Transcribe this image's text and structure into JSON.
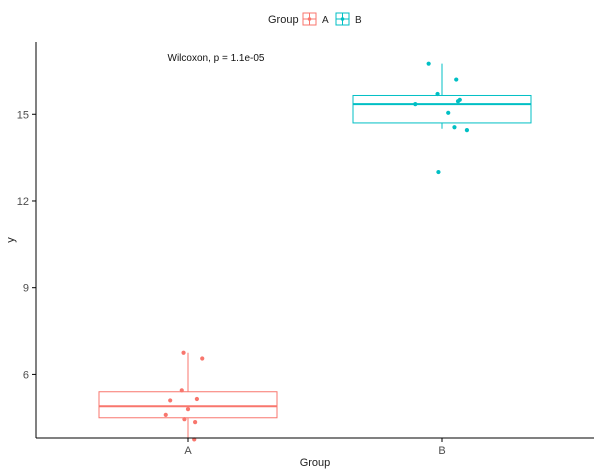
{
  "chart_data": {
    "type": "box",
    "xlabel": "Group",
    "ylabel": "y",
    "categories": [
      "A",
      "B"
    ],
    "ylim": [
      3.8,
      17.5
    ],
    "yticks": [
      6,
      9,
      12,
      15
    ],
    "legend": {
      "title": "Group",
      "position": "top",
      "entries": [
        "A",
        "B"
      ]
    },
    "annotation": "Wilcoxon, p = 1.1e-05",
    "grid": false,
    "colors": {
      "A": "#F8766D",
      "B": "#00BFC4"
    },
    "boxes": [
      {
        "group": "A",
        "q1": 4.5,
        "median": 4.9,
        "q3": 5.4,
        "whisker_low": 3.75,
        "whisker_high": 6.75
      },
      {
        "group": "B",
        "q1": 14.7,
        "median": 15.35,
        "q3": 15.65,
        "whisker_low": 14.5,
        "whisker_high": 16.75
      }
    ],
    "series": [
      {
        "name": "A",
        "points": [
          {
            "x": -0.05,
            "y": 6.75
          },
          {
            "x": 0.16,
            "y": 6.55
          },
          {
            "x": -0.07,
            "y": 5.45
          },
          {
            "x": -0.2,
            "y": 5.1
          },
          {
            "x": 0.1,
            "y": 5.15
          },
          {
            "x": 0.0,
            "y": 4.8
          },
          {
            "x": -0.25,
            "y": 4.6
          },
          {
            "x": -0.04,
            "y": 4.45
          },
          {
            "x": 0.08,
            "y": 4.35
          },
          {
            "x": 0.07,
            "y": 3.75
          }
        ]
      },
      {
        "name": "B",
        "points": [
          {
            "x": -0.15,
            "y": 16.75
          },
          {
            "x": 0.16,
            "y": 16.2
          },
          {
            "x": -0.05,
            "y": 15.7
          },
          {
            "x": 0.2,
            "y": 15.5
          },
          {
            "x": 0.18,
            "y": 15.45
          },
          {
            "x": -0.3,
            "y": 15.35
          },
          {
            "x": 0.07,
            "y": 15.05
          },
          {
            "x": 0.14,
            "y": 14.55
          },
          {
            "x": 0.28,
            "y": 14.45
          },
          {
            "x": -0.04,
            "y": 13.0
          }
        ]
      }
    ]
  }
}
